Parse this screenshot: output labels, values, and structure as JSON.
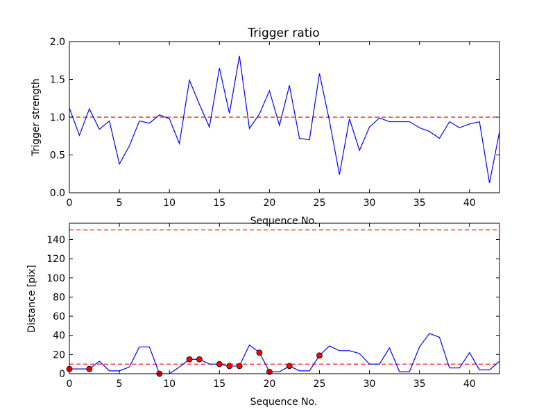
{
  "chart_data": [
    {
      "type": "line",
      "title": "Trigger ratio",
      "xlabel": "Sequence No.",
      "ylabel": "Trigger strength",
      "xlim": [
        0,
        43
      ],
      "ylim": [
        0,
        2.0
      ],
      "xticks": [
        0,
        5,
        10,
        15,
        20,
        25,
        30,
        35,
        40
      ],
      "yticks": [
        0.0,
        0.5,
        1.0,
        1.5,
        2.0
      ],
      "ytick_labels": [
        "0.0",
        "0.5",
        "1.0",
        "1.5",
        "2.0"
      ],
      "series": [
        {
          "color": "#0000ff",
          "x": [
            0,
            1,
            2,
            3,
            4,
            5,
            6,
            7,
            8,
            9,
            10,
            11,
            12,
            13,
            14,
            15,
            16,
            17,
            18,
            19,
            20,
            21,
            22,
            23,
            24,
            25,
            26,
            27,
            28,
            29,
            30,
            31,
            32,
            33,
            34,
            35,
            36,
            37,
            38,
            39,
            40,
            41,
            42,
            43
          ],
          "y": [
            1.12,
            0.76,
            1.11,
            0.84,
            0.95,
            0.38,
            0.62,
            0.95,
            0.92,
            1.03,
            0.98,
            0.65,
            1.49,
            1.17,
            0.87,
            1.65,
            1.05,
            1.81,
            0.85,
            1.04,
            1.35,
            0.89,
            1.42,
            0.72,
            0.7,
            1.58,
            0.95,
            0.24,
            0.98,
            0.56,
            0.87,
            0.99,
            0.94,
            0.94,
            0.94,
            0.86,
            0.81,
            0.72,
            0.94,
            0.86,
            0.91,
            0.94,
            0.13,
            0.81
          ]
        }
      ],
      "reference_lines": [
        {
          "y": 1.0,
          "color": "#ff0000",
          "style": "dashed"
        }
      ],
      "grid": false
    },
    {
      "type": "line",
      "title": "",
      "xlabel": "Sequence No.",
      "ylabel": "Distance [pix]",
      "xlim": [
        0,
        43
      ],
      "ylim": [
        0,
        157
      ],
      "xticks": [
        0,
        5,
        10,
        15,
        20,
        25,
        30,
        35,
        40
      ],
      "yticks": [
        0,
        20,
        40,
        60,
        80,
        100,
        120,
        140
      ],
      "ytick_labels": [
        "0",
        "20",
        "40",
        "60",
        "80",
        "100",
        "120",
        "140"
      ],
      "series": [
        {
          "color": "#0000ff",
          "x": [
            0,
            1,
            2,
            3,
            4,
            5,
            6,
            7,
            8,
            9,
            10,
            11,
            12,
            13,
            14,
            15,
            16,
            17,
            18,
            19,
            20,
            21,
            22,
            23,
            24,
            25,
            26,
            27,
            28,
            29,
            30,
            31,
            32,
            33,
            34,
            35,
            36,
            37,
            38,
            39,
            40,
            41,
            42,
            43
          ],
          "y": [
            5,
            5,
            5,
            13,
            3,
            3,
            7,
            28,
            28,
            0,
            0,
            7,
            15,
            15,
            10,
            10,
            8,
            8,
            30,
            22,
            2,
            2,
            8,
            3,
            3,
            19,
            29,
            24,
            24,
            21,
            10,
            10,
            27,
            2,
            2,
            28,
            42,
            38,
            6,
            6,
            22,
            4,
            4,
            13
          ]
        }
      ],
      "markers": {
        "color": "#ff0000",
        "x": [
          0,
          2,
          9,
          12,
          13,
          15,
          16,
          17,
          19,
          20,
          22,
          25
        ],
        "y": [
          5,
          5,
          0,
          15,
          15,
          10,
          8,
          8,
          22,
          2,
          8,
          19
        ]
      },
      "reference_lines": [
        {
          "y": 10,
          "color": "#ff0000",
          "style": "dashed"
        },
        {
          "y": 150,
          "color": "#ff0000",
          "style": "dashed"
        }
      ],
      "grid": false
    }
  ]
}
